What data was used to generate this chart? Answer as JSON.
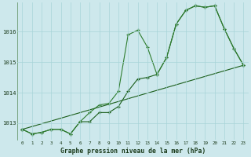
{
  "x": [
    0,
    1,
    2,
    3,
    4,
    5,
    6,
    7,
    8,
    9,
    10,
    11,
    12,
    13,
    14,
    15,
    16,
    17,
    18,
    19,
    20,
    21,
    22,
    23
  ],
  "line1": [
    1012.8,
    1012.65,
    1012.7,
    1012.8,
    1012.8,
    1012.65,
    1013.05,
    1013.35,
    1013.6,
    1013.65,
    1014.05,
    1015.9,
    1016.05,
    1015.5,
    1014.6,
    1015.15,
    1016.25,
    1016.7,
    1016.85,
    1016.8,
    1016.85,
    1016.1,
    1015.45,
    1014.9
  ],
  "line2": [
    1012.8,
    1012.65,
    1012.7,
    1012.8,
    1012.8,
    1012.65,
    1013.05,
    1013.05,
    1013.35,
    1013.35,
    1013.55,
    1014.05,
    1014.45,
    1014.5,
    1014.6,
    1015.15,
    1016.25,
    1016.7,
    1016.85,
    1016.8,
    1016.85,
    1016.1,
    1015.45,
    1014.9
  ],
  "line3_x": [
    0,
    23
  ],
  "line3_y": [
    1012.8,
    1014.9
  ],
  "ylim_min": 1012.45,
  "ylim_max": 1016.95,
  "yticks": [
    1013,
    1014,
    1015,
    1016
  ],
  "xticks": [
    0,
    1,
    2,
    3,
    4,
    5,
    6,
    7,
    8,
    9,
    10,
    11,
    12,
    13,
    14,
    15,
    16,
    17,
    18,
    19,
    20,
    21,
    22,
    23
  ],
  "xlabel": "Graphe pression niveau de la mer (hPa)",
  "bg_color": "#cde8ec",
  "grid_color": "#a8d4d8",
  "line_color_dark": "#1a5e1a",
  "line_color_mid": "#2e7d2e"
}
